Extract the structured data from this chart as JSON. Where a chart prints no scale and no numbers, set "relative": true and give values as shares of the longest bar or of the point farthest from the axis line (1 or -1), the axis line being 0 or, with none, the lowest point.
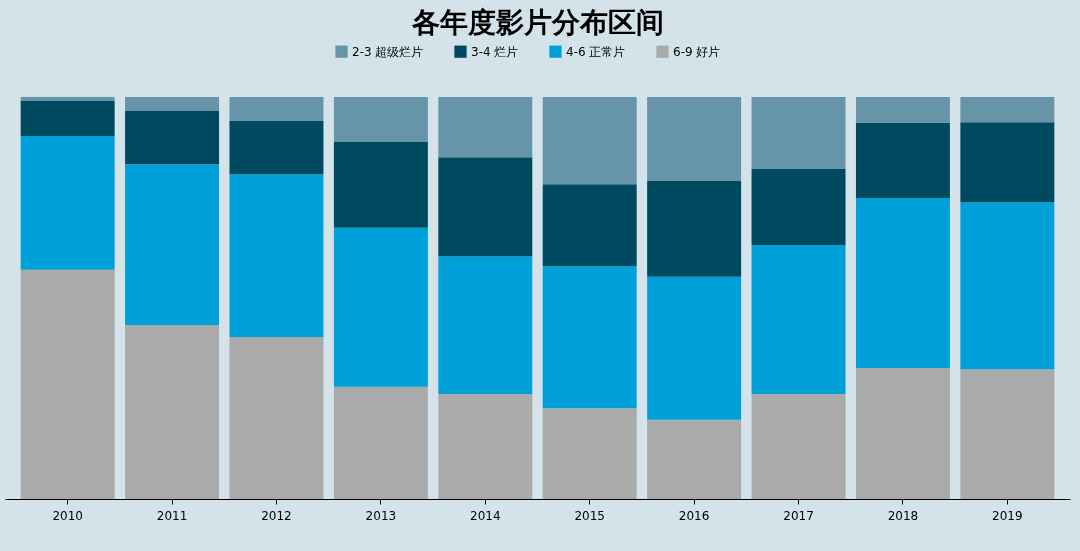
{
  "chart_data": {
    "type": "bar",
    "title": "各年度影片分布区间",
    "stacked": true,
    "relative": true,
    "legend": "top",
    "categories": [
      "2010",
      "2011",
      "2012",
      "2013",
      "2014",
      "2015",
      "2016",
      "2017",
      "2018",
      "2019"
    ],
    "series": [
      {
        "name": "6-9 好片",
        "color": "#aaaaaa",
        "values": [
          0.57,
          0.433,
          0.403,
          0.279,
          0.261,
          0.226,
          0.197,
          0.261,
          0.326,
          0.323
        ]
      },
      {
        "name": "4-6 正常片",
        "color": "#00a1d9",
        "values": [
          0.333,
          0.4,
          0.405,
          0.396,
          0.343,
          0.353,
          0.356,
          0.371,
          0.423,
          0.415
        ]
      },
      {
        "name": "3-4 烂片",
        "color": "#004a60",
        "values": [
          0.087,
          0.132,
          0.132,
          0.214,
          0.246,
          0.204,
          0.239,
          0.189,
          0.187,
          0.199
        ]
      },
      {
        "name": "2-3 超级烂片",
        "color": "#6694a8",
        "values": [
          0.01,
          0.035,
          0.06,
          0.111,
          0.15,
          0.217,
          0.208,
          0.179,
          0.064,
          0.063
        ]
      }
    ]
  }
}
